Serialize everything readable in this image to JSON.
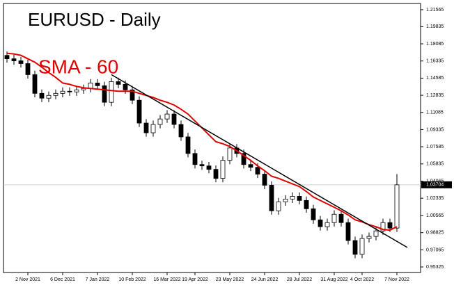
{
  "chart_data": {
    "type": "candlestick",
    "title": "EURUSD - Daily",
    "annotation": "SMA - 60",
    "categories": [
      null,
      null,
      null,
      "2 Nov 2021",
      null,
      null,
      null,
      null,
      "6 Dec 2021",
      null,
      null,
      null,
      null,
      "7 Jan 2022",
      null,
      null,
      null,
      null,
      "10 Feb 2022",
      null,
      null,
      null,
      null,
      "16 Mar 2022",
      null,
      null,
      null,
      "19 Apr 2022",
      null,
      null,
      null,
      null,
      "23 May 2022",
      null,
      null,
      null,
      null,
      "24 Jun 2022",
      null,
      null,
      null,
      null,
      "28 Jul 2022",
      null,
      null,
      null,
      null,
      "31 Aug 2022",
      null,
      null,
      null,
      "4 Oct 2022",
      null,
      null,
      null,
      null,
      "7 Nov 2022"
    ],
    "open": [
      1.169,
      1.1656,
      1.1635,
      1.1607,
      1.1494,
      1.1303,
      1.1254,
      1.1282,
      1.1303,
      1.1325,
      1.1318,
      1.1339,
      1.1353,
      1.1409,
      1.1381,
      1.1212,
      1.1423,
      1.1395,
      1.1339,
      1.1233,
      1.1,
      1.0901,
      1.0986,
      1.1042,
      1.1092,
      1.0986,
      1.0859,
      1.069,
      1.0577,
      1.0563,
      1.0528,
      1.0436,
      1.062,
      1.0746,
      1.069,
      1.0577,
      1.0549,
      1.0479,
      1.0366,
      1.0105,
      1.0197,
      1.0225,
      1.0253,
      1.0211,
      1.0126,
      1.0013,
      0.9943,
      0.9985,
      1.007,
      0.9985,
      0.9802,
      0.9661,
      0.9823,
      0.9844,
      0.99,
      0.9985,
      0.9929
    ],
    "high": [
      1.173,
      1.1696,
      1.1675,
      1.1647,
      1.1534,
      1.1343,
      1.1322,
      1.1343,
      1.1365,
      1.1365,
      1.1379,
      1.1393,
      1.1449,
      1.1449,
      1.1421,
      1.1463,
      1.1463,
      1.1435,
      1.1379,
      1.1273,
      1.104,
      1.1026,
      1.1082,
      1.1132,
      1.1132,
      1.1026,
      1.0899,
      1.073,
      1.0617,
      1.0603,
      1.0568,
      1.066,
      1.0786,
      1.0786,
      1.073,
      1.0617,
      1.0589,
      1.0519,
      1.0406,
      1.0237,
      1.0265,
      1.0293,
      1.0293,
      1.0251,
      1.0166,
      1.0053,
      1.0025,
      1.011,
      1.011,
      1.0025,
      0.9842,
      0.9863,
      0.9884,
      0.994,
      1.0025,
      1.0025,
      1.048
    ],
    "low": [
      1.1616,
      1.1595,
      1.1567,
      1.1454,
      1.1263,
      1.1214,
      1.1214,
      1.1242,
      1.1263,
      1.1278,
      1.1278,
      1.1299,
      1.1313,
      1.1341,
      1.1172,
      1.1172,
      1.1355,
      1.1299,
      1.1193,
      1.096,
      1.0861,
      1.0861,
      1.0946,
      1.1002,
      1.0946,
      1.0819,
      1.065,
      1.0537,
      1.0523,
      1.0488,
      1.0396,
      1.0396,
      1.058,
      1.065,
      1.0537,
      1.0509,
      1.0439,
      1.0326,
      1.0065,
      1.0065,
      1.0157,
      1.0185,
      1.0171,
      1.0086,
      0.9973,
      0.9903,
      0.9903,
      0.9945,
      0.9945,
      0.9762,
      0.9621,
      0.9621,
      0.9783,
      0.9804,
      0.986,
      0.9889,
      0.9889
    ],
    "close": [
      1.1656,
      1.1635,
      1.1607,
      1.1494,
      1.1303,
      1.1254,
      1.1282,
      1.1303,
      1.1325,
      1.1318,
      1.1339,
      1.1353,
      1.1409,
      1.1381,
      1.1212,
      1.1423,
      1.1395,
      1.1339,
      1.1233,
      1.1,
      1.0901,
      1.0986,
      1.1042,
      1.1092,
      1.0986,
      1.0859,
      1.069,
      1.0577,
      1.0563,
      1.0528,
      1.0436,
      1.062,
      1.0746,
      1.069,
      1.0577,
      1.0549,
      1.0479,
      1.0366,
      1.0105,
      1.0197,
      1.0225,
      1.0253,
      1.0211,
      1.0126,
      1.0013,
      0.9943,
      0.9985,
      1.007,
      0.9985,
      0.9802,
      0.9661,
      0.9823,
      0.9844,
      0.99,
      0.9985,
      0.9929,
      1.03704
    ],
    "up_color": "#ffffff",
    "down_color": "#000000",
    "sma": {
      "color": "#e00000",
      "values": [
        1.1712,
        1.1705,
        1.1691,
        1.1656,
        1.1621,
        1.1571,
        1.1515,
        1.1466,
        1.1409,
        1.1395,
        1.1374,
        1.136,
        1.1353,
        1.1346,
        1.1339,
        1.1332,
        1.1325,
        1.1325,
        1.1325,
        1.1303,
        1.1282,
        1.1261,
        1.1233,
        1.1212,
        1.1184,
        1.1141,
        1.1092,
        1.1021,
        1.0951,
        1.088,
        1.081,
        1.0789,
        1.0761,
        1.0718,
        1.0669,
        1.062,
        1.0563,
        1.0514,
        1.0458,
        1.0436,
        1.0408,
        1.038,
        1.0352,
        1.0302,
        1.0246,
        1.0211,
        1.0176,
        1.0141,
        1.0105,
        1.0063,
        1.0013,
        0.9992,
        0.9964,
        0.9943,
        0.9915,
        0.9908,
        0.9943
      ]
    },
    "trendline": {
      "color": "#000000",
      "x": [
        15,
        57.5
      ],
      "values": [
        1.1494,
        0.9731
      ]
    },
    "ylim": [
      0.9476,
      1.222
    ],
    "yticks": [
      0.95325,
      0.97065,
      0.98825,
      1.00565,
      1.02335,
      1.04065,
      1.05835,
      1.07585,
      1.09335,
      1.11085,
      1.12835,
      1.14585,
      1.16335,
      1.18085,
      1.19835,
      1.21565
    ]
  }
}
